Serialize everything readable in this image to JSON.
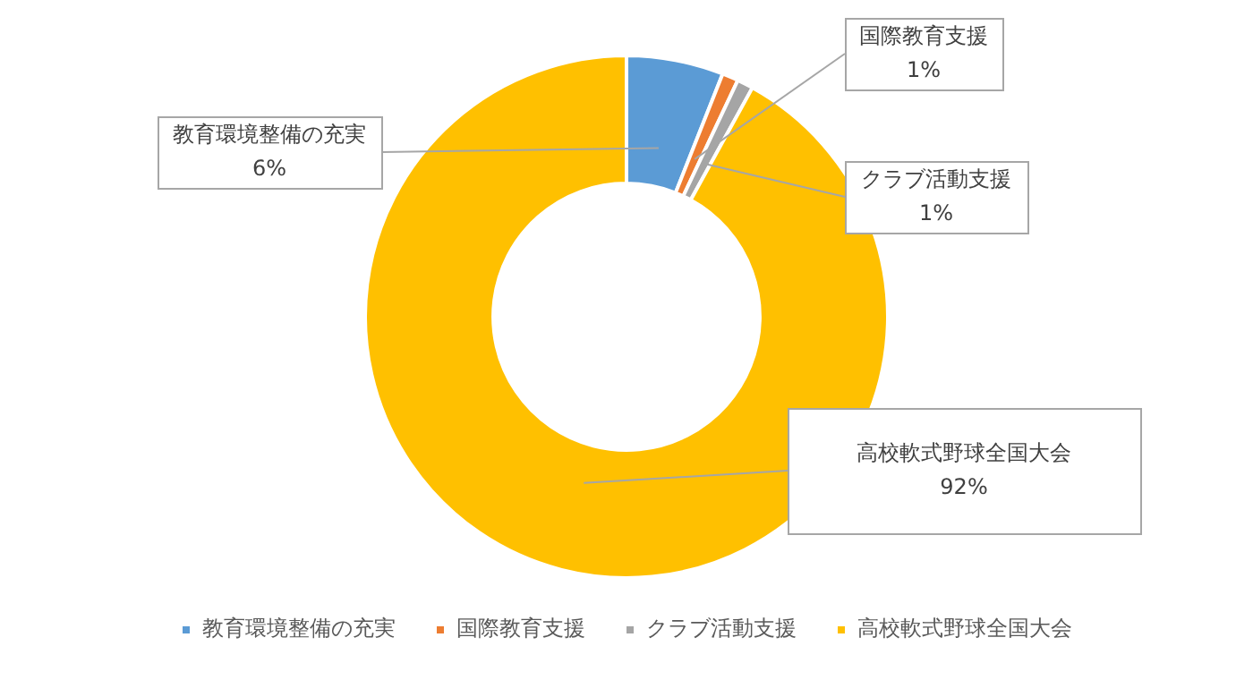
{
  "chart_data": {
    "type": "donut",
    "categories": [
      "教育環境整備の充実",
      "国際教育支援",
      "クラブ活動支援",
      "高校軟式野球全国大会"
    ],
    "values": [
      6,
      1,
      1,
      92
    ],
    "colors": [
      "#5b9bd5",
      "#ed7d31",
      "#a5a5a5",
      "#ffc000"
    ],
    "value_labels": [
      "6%",
      "1%",
      "1%",
      "92%"
    ],
    "legend": "bottom"
  }
}
